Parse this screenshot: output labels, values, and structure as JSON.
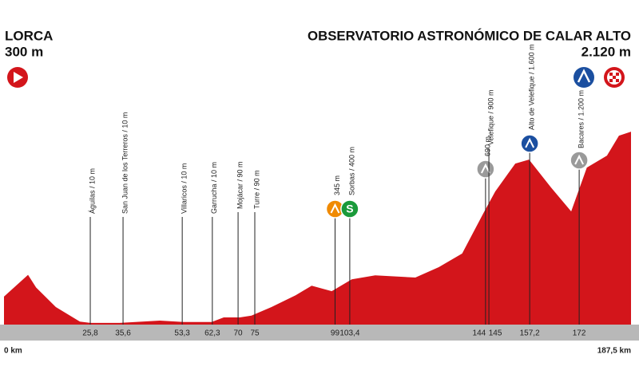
{
  "chart_data": {
    "type": "area",
    "start": {
      "name": "LORCA",
      "altitude": "300 m"
    },
    "finish": {
      "name": "OBSERVATORIO ASTRONÓMICO DE CALAR ALTO",
      "altitude": "2.120 m"
    },
    "x": [
      0,
      7.2,
      9.6,
      15.5,
      22.7,
      25.8,
      34.6,
      46.6,
      53.7,
      62.1,
      65.7,
      70.5,
      74,
      80,
      87.2,
      92,
      98,
      104,
      111,
      123,
      130,
      137,
      143.3,
      146.9,
      152.9,
      157,
      163.6,
      169.6,
      174.3,
      180.3,
      183.9,
      187.5
    ],
    "values": [
      300,
      540,
      400,
      185,
      25,
      10,
      10,
      35,
      20,
      20,
      70,
      70,
      90,
      185,
      315,
      420,
      360,
      490,
      535,
      510,
      625,
      775,
      1215,
      1460,
      1768,
      1812,
      1504,
      1240,
      1724,
      1856,
      2076,
      2120
    ],
    "color": "#d3151b",
    "xlim": [
      0,
      187.5
    ],
    "ylim": [
      0,
      2200
    ],
    "xaxis_ends": [
      {
        "value": 0,
        "label": "0 km"
      },
      {
        "value": 187.5,
        "label": "187,5 km"
      }
    ],
    "xticks": [
      {
        "value": 25.8,
        "label": "25,8"
      },
      {
        "value": 35.6,
        "label": "35,6"
      },
      {
        "value": 53.3,
        "label": "53,3"
      },
      {
        "value": 62.3,
        "label": "62,3"
      },
      {
        "value": 70,
        "label": "70"
      },
      {
        "value": 75,
        "label": "75"
      },
      {
        "value": 99,
        "label": "99"
      },
      {
        "value": 103.4,
        "label": "103,4"
      },
      {
        "value": 144,
        "label": "144"
      },
      {
        "value": 145,
        "label": "145"
      },
      {
        "value": 157.2,
        "label": "157,2"
      },
      {
        "value": 172,
        "label": "172"
      }
    ],
    "markers": [
      {
        "label": "Águilas / 10 m"
      },
      {
        "label": "San Juan de los Terreros / 10 m"
      },
      {
        "label": "Villaricos / 10 m"
      },
      {
        "label": "Garrucha / 10 m"
      },
      {
        "label": "Mojácar / 90 m"
      },
      {
        "label": "Turre / 90 m"
      },
      {
        "label": "345 m",
        "icon": "feed"
      },
      {
        "label": "Sorbas / 400 m",
        "icon": "sprint",
        "icon_text": "S"
      },
      {
        "label": "690 m",
        "icon": "climb3"
      },
      {
        "label": "Velefique / 900 m"
      },
      {
        "label": "Alto de Velefique / 1.600 m",
        "icon": "climb1"
      },
      {
        "label": "Bacares / 1.200 m",
        "icon": "climb3"
      }
    ]
  }
}
